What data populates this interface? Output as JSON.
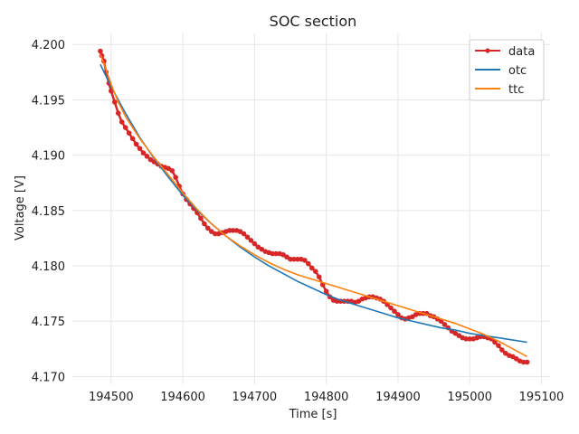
{
  "chart_data": {
    "type": "line",
    "title": "SOC section",
    "xlabel": "Time [s]",
    "ylabel": "Voltage [V]",
    "xlim": [
      194446,
      195112
    ],
    "ylim": [
      4.1693,
      4.201
    ],
    "xticks": [
      194500,
      194600,
      194700,
      194800,
      194900,
      195000,
      195100
    ],
    "yticks": [
      4.17,
      4.175,
      4.18,
      4.185,
      4.19,
      4.195,
      4.2
    ],
    "xtick_labels": [
      "194500",
      "194600",
      "194700",
      "194800",
      "194900",
      "195000",
      "195100"
    ],
    "ytick_labels": [
      "4.170",
      "4.175",
      "4.180",
      "4.185",
      "4.190",
      "4.195",
      "4.200"
    ],
    "grid": true,
    "legend": {
      "position": "top-right"
    },
    "series": [
      {
        "name": "data",
        "color": "#d62728",
        "marker": "circle",
        "x": [
          194485,
          194487,
          194490,
          194493,
          194497,
          194500,
          194505,
          194510,
          194515,
          194520,
          194525,
          194530,
          194535,
          194540,
          194545,
          194550,
          194555,
          194560,
          194565,
          194570,
          194575,
          194580,
          194585,
          194590,
          194595,
          194600,
          194605,
          194610,
          194615,
          194620,
          194625,
          194630,
          194635,
          194640,
          194645,
          194650,
          194655,
          194660,
          194665,
          194670,
          194675,
          194680,
          194685,
          194690,
          194695,
          194700,
          194705,
          194710,
          194715,
          194720,
          194725,
          194730,
          194735,
          194740,
          194745,
          194750,
          194755,
          194760,
          194765,
          194770,
          194775,
          194780,
          194785,
          194790,
          194795,
          194800,
          194805,
          194810,
          194815,
          194820,
          194825,
          194830,
          194835,
          194840,
          194845,
          194850,
          194855,
          194860,
          194865,
          194870,
          194875,
          194880,
          194885,
          194890,
          194895,
          194900,
          194905,
          194910,
          194915,
          194920,
          194925,
          194930,
          194935,
          194940,
          194945,
          194950,
          194955,
          194960,
          194965,
          194970,
          194975,
          194980,
          194985,
          194990,
          194995,
          195000,
          195005,
          195010,
          195015,
          195020,
          195025,
          195030,
          195035,
          195040,
          195045,
          195050,
          195055,
          195060,
          195065,
          195070,
          195075,
          195080
        ],
        "y": [
          4.1994,
          4.199,
          4.1985,
          4.1975,
          4.1965,
          4.1958,
          4.1948,
          4.1938,
          4.193,
          4.1925,
          4.192,
          4.1915,
          4.191,
          4.1906,
          4.1902,
          4.1899,
          4.1896,
          4.1894,
          4.1892,
          4.189,
          4.1889,
          4.1888,
          4.1886,
          4.188,
          4.1872,
          4.1865,
          4.186,
          4.1856,
          4.1852,
          4.1848,
          4.1843,
          4.1838,
          4.1834,
          4.1831,
          4.1829,
          4.1829,
          4.183,
          4.1831,
          4.1832,
          4.1832,
          4.1832,
          4.1831,
          4.1829,
          4.1826,
          4.1823,
          4.182,
          4.1817,
          4.1815,
          4.1813,
          4.1812,
          4.1811,
          4.1811,
          4.1811,
          4.181,
          4.1808,
          4.1806,
          4.1806,
          4.1806,
          4.1806,
          4.1805,
          4.1802,
          4.1798,
          4.1795,
          4.179,
          4.1783,
          4.1777,
          4.1772,
          4.1769,
          4.1768,
          4.1768,
          4.1768,
          4.1768,
          4.1768,
          4.1767,
          4.1768,
          4.177,
          4.1771,
          4.1772,
          4.1772,
          4.1771,
          4.177,
          4.1768,
          4.1765,
          4.1762,
          4.1759,
          4.1756,
          4.1753,
          4.1752,
          4.1753,
          4.1754,
          4.1756,
          4.1757,
          4.1757,
          4.1757,
          4.1755,
          4.1754,
          4.1752,
          4.175,
          4.1747,
          4.1744,
          4.1741,
          4.1739,
          4.1737,
          4.1735,
          4.1734,
          4.1734,
          4.1734,
          4.1735,
          4.1736,
          4.1736,
          4.1735,
          4.1734,
          4.1731,
          4.1728,
          4.1724,
          4.1721,
          4.1719,
          4.1718,
          4.1716,
          4.1714,
          4.1713,
          4.1713
        ]
      },
      {
        "name": "otc",
        "color": "#1f77b4",
        "x": [
          194485,
          194500,
          194520,
          194540,
          194560,
          194580,
          194600,
          194620,
          194640,
          194660,
          194680,
          194700,
          194720,
          194740,
          194760,
          194780,
          194800,
          194820,
          194840,
          194860,
          194880,
          194900,
          194920,
          194940,
          194960,
          194980,
          195000,
          195020,
          195040,
          195060,
          195080
        ],
        "y": [
          4.1982,
          4.1962,
          4.1938,
          4.1916,
          4.1897,
          4.188,
          4.1864,
          4.185,
          4.1838,
          4.1827,
          4.1817,
          4.1808,
          4.18,
          4.1793,
          4.1786,
          4.178,
          4.1774,
          4.1769,
          4.1765,
          4.1761,
          4.1757,
          4.1753,
          4.175,
          4.1747,
          4.1744,
          4.1742,
          4.1739,
          4.1737,
          4.1735,
          4.1733,
          4.1731
        ]
      },
      {
        "name": "ttc",
        "color": "#ff7f0e",
        "x": [
          194485,
          194490,
          194500,
          194510,
          194520,
          194540,
          194560,
          194580,
          194600,
          194620,
          194640,
          194660,
          194680,
          194700,
          194720,
          194740,
          194760,
          194780,
          194800,
          194820,
          194840,
          194860,
          194880,
          194900,
          194920,
          194940,
          194960,
          194980,
          195000,
          195020,
          195040,
          195060,
          195080
        ],
        "y": [
          4.1991,
          4.1983,
          4.1964,
          4.1948,
          4.1935,
          4.1915,
          4.1898,
          4.1882,
          4.1866,
          4.1851,
          4.1838,
          4.1827,
          4.1818,
          4.181,
          4.1803,
          4.1797,
          4.1792,
          4.1788,
          4.1784,
          4.178,
          4.1776,
          4.1772,
          4.1768,
          4.1764,
          4.176,
          4.1756,
          4.1752,
          4.1748,
          4.1743,
          4.1738,
          4.1732,
          4.1725,
          4.1718
        ]
      }
    ]
  }
}
